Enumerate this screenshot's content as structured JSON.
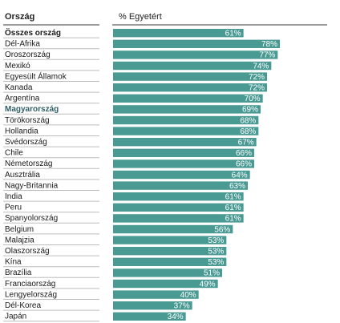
{
  "header": {
    "country_col": "Ország",
    "value_col": "% Egyetért"
  },
  "colors": {
    "bar": "#4a9a94",
    "highlight_text": "#2f5f66"
  },
  "chart_data": {
    "type": "bar",
    "orientation": "horizontal",
    "categories": [
      "Összes ország",
      "Dél-Afrika",
      "Oroszország",
      "Mexikó",
      "Egyesült Államok",
      "Kanada",
      "Argentína",
      "Magyarország",
      "Törökország",
      "Hollandia",
      "Svédország",
      "Chile",
      "Németország",
      "Ausztrália",
      "Nagy-Britannia",
      "India",
      "Peru",
      "Spanyolország",
      "Belgium",
      "Malajzia",
      "Olaszország",
      "Kína",
      "Brazília",
      "Franciaország",
      "Lengyelország",
      "Dél-Korea",
      "Japán"
    ],
    "values": [
      61,
      78,
      77,
      74,
      72,
      72,
      70,
      69,
      68,
      68,
      67,
      66,
      66,
      64,
      63,
      61,
      61,
      61,
      56,
      53,
      53,
      53,
      51,
      49,
      40,
      37,
      34
    ],
    "value_labels": [
      "61%",
      "78%",
      "77%",
      "74%",
      "72%",
      "72%",
      "70%",
      "69%",
      "68%",
      "68%",
      "67%",
      "66%",
      "66%",
      "64%",
      "63%",
      "61%",
      "61%",
      "61%",
      "56%",
      "53%",
      "53%",
      "53%",
      "51%",
      "49%",
      "40%",
      "37%",
      "34%"
    ],
    "highlight_rows": {
      "total": "Összes ország",
      "highlighted": "Magyarország"
    },
    "xlim": [
      0,
      100
    ],
    "ylabel": "Ország",
    "xlabel": "% Egyetért",
    "grid": false
  }
}
